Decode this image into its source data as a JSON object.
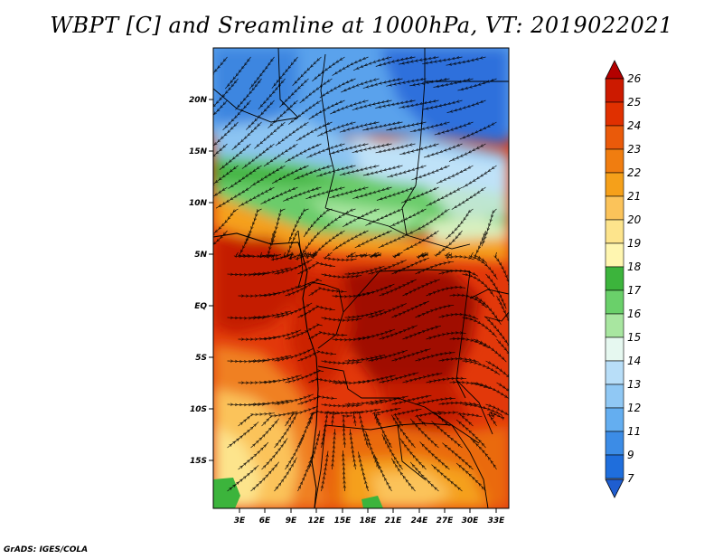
{
  "title": "WBPT [C] and Sreamline at 1000hPa, VT: 2019022021",
  "credit": "GrADS: IGES/COLA",
  "map": {
    "lat_labels": [
      "20N",
      "15N",
      "10N",
      "5N",
      "EQ",
      "5S",
      "10S",
      "15S"
    ],
    "lon_labels": [
      "3E",
      "6E",
      "9E",
      "12E",
      "15E",
      "18E",
      "21E",
      "24E",
      "27E",
      "30E",
      "33E"
    ]
  },
  "colorbar": {
    "labels": [
      "26",
      "25",
      "24",
      "23",
      "22",
      "21",
      "20",
      "19",
      "18",
      "17",
      "16",
      "15",
      "14",
      "13",
      "12",
      "11",
      "9",
      "7"
    ],
    "colors": [
      "#b30000",
      "#cc1a00",
      "#e03000",
      "#ea5a0a",
      "#f07d10",
      "#f5a01a",
      "#fbc35a",
      "#fde48c",
      "#fff6b0",
      "#3cb43c",
      "#6ad06a",
      "#a8e6a0",
      "#e6f8f0",
      "#b8def8",
      "#90c8f4",
      "#64aef0",
      "#3c8ce6",
      "#1f6edc",
      "#1f5ed0"
    ]
  }
}
